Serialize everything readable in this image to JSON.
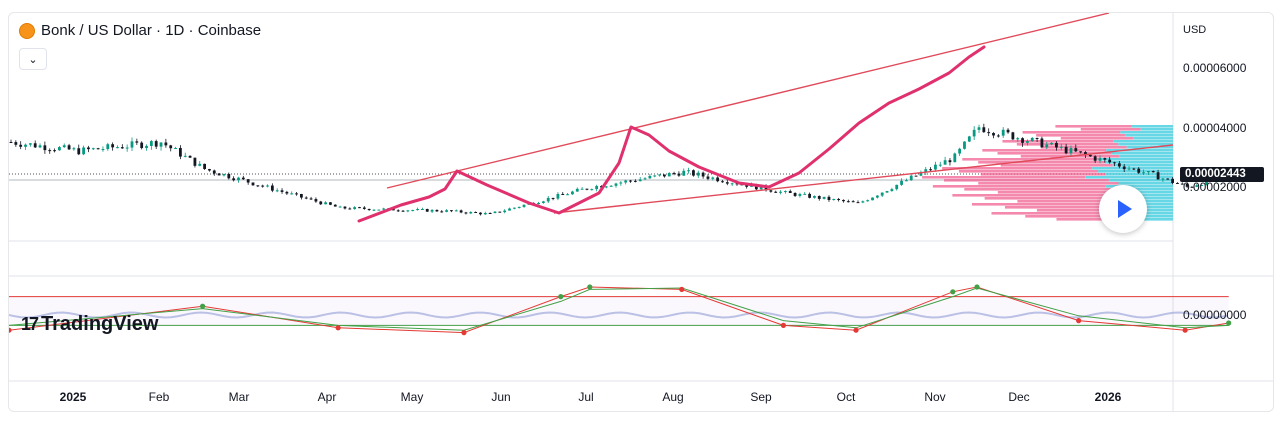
{
  "header": {
    "title": "Bonk / US Dollar · 1D · Coinbase",
    "coin_icon": "bonk-coin-icon"
  },
  "collapse_icon": "⌄",
  "currency_label": "USD",
  "price_axis": {
    "ticks": [
      "0.00006000",
      "0.00004000",
      "0.00002000"
    ],
    "oscillator_tick": "0.00000000"
  },
  "last_price": "0.00002443",
  "time_axis": [
    "2025",
    "Feb",
    "Mar",
    "Apr",
    "May",
    "Jun",
    "Jul",
    "Aug",
    "Sep",
    "Oct",
    "Nov",
    "Dec",
    "2026"
  ],
  "watermark": "TradingView",
  "colors": {
    "annotation": "#e0306e",
    "trendline": "#e04a5a",
    "volume_profile_up": "#4dd0e1",
    "volume_profile_down": "#f06292",
    "candle_up": "#089981",
    "candle_down": "#131722",
    "oscillator_fast": "#e53935",
    "oscillator_slow": "#43a047",
    "oscillator_band": "#9fa8da"
  },
  "chart_data": {
    "type": "candlestick",
    "symbol": "Bonk / US Dollar",
    "interval": "1D",
    "exchange": "Coinbase",
    "price_series": {
      "dates": [
        "2025-01-01",
        "2025-01-15",
        "2025-02-01",
        "2025-02-10",
        "2025-03-01",
        "2025-03-10",
        "2025-04-01",
        "2025-04-10",
        "2025-05-01",
        "2025-05-20",
        "2025-06-10",
        "2025-06-25",
        "2025-07-15",
        "2025-07-20",
        "2025-08-10",
        "2025-08-25",
        "2025-09-01",
        "2025-09-10"
      ],
      "close": [
        3.5e-05,
        3.2e-05,
        3.5e-05,
        2.6e-05,
        1.7e-05,
        1.3e-05,
        1.2e-05,
        1.1e-05,
        2e-05,
        2.5e-05,
        1.8e-05,
        1.45e-05,
        3e-05,
        4e-05,
        3.1e-05,
        2.4e-05,
        2e-05,
        2.44e-05
      ]
    },
    "last_price": 2.443e-05,
    "y_ticks": [
      6e-05,
      4e-05,
      2e-05
    ],
    "x_ticks": [
      "2025",
      "Feb",
      "Mar",
      "Apr",
      "May",
      "Jun",
      "Jul",
      "Aug",
      "Sep",
      "Oct",
      "Nov",
      "Dec",
      "2026"
    ],
    "oscillator_series": {
      "dates": [
        "2025-01-01",
        "2025-02-10",
        "2025-03-10",
        "2025-04-05",
        "2025-04-25",
        "2025-05-01",
        "2025-05-20",
        "2025-06-10",
        "2025-06-25",
        "2025-07-15",
        "2025-07-20",
        "2025-08-10",
        "2025-09-01",
        "2025-09-10"
      ],
      "fast": [
        10,
        60,
        15,
        5,
        80,
        100,
        95,
        20,
        10,
        90,
        100,
        30,
        10,
        25
      ],
      "slow": [
        20,
        55,
        20,
        10,
        70,
        95,
        98,
        30,
        15,
        80,
        98,
        40,
        15,
        20
      ]
    },
    "oscillator_ylim": [
      0,
      100
    ],
    "oscillator_levels": [
      80,
      20
    ],
    "grid": false,
    "legend": "none"
  }
}
